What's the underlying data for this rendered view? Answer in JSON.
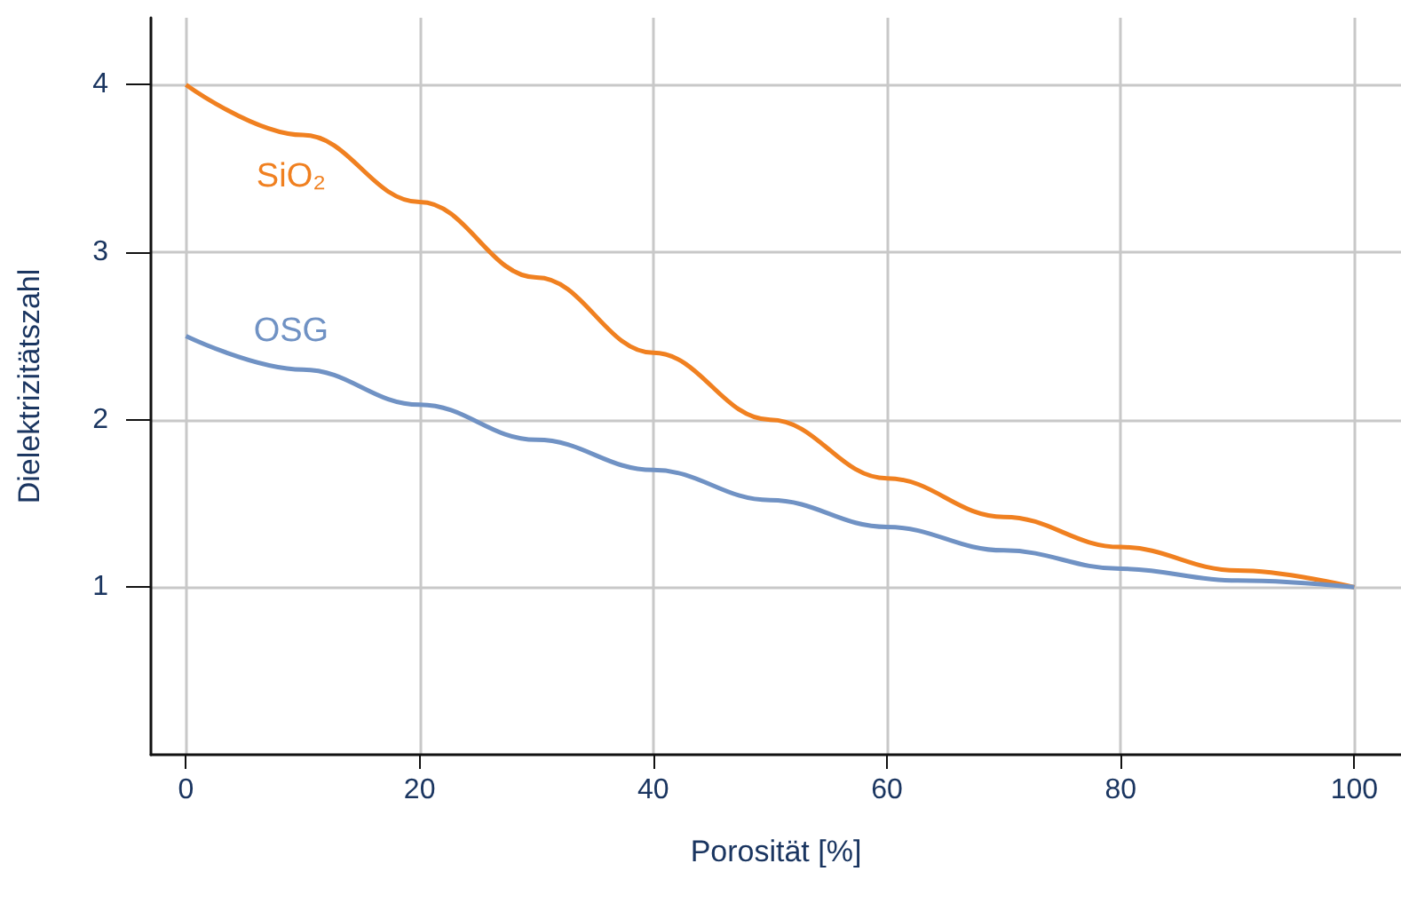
{
  "chart_data": {
    "type": "line",
    "xlabel": "Porosität [%]",
    "ylabel": "Dielektrizitätszahl",
    "x": [
      0,
      10,
      20,
      30,
      40,
      50,
      60,
      70,
      80,
      90,
      100
    ],
    "series": [
      {
        "name": "SiO₂",
        "color": "#f08020",
        "values": [
          4.0,
          3.7,
          3.3,
          2.85,
          2.4,
          2.0,
          1.65,
          1.42,
          1.24,
          1.1,
          1.0
        ]
      },
      {
        "name": "OSG",
        "color": "#7092c4",
        "values": [
          2.5,
          2.3,
          2.09,
          1.88,
          1.7,
          1.52,
          1.36,
          1.22,
          1.11,
          1.04,
          1.0
        ]
      }
    ],
    "xlim": [
      -3,
      104
    ],
    "xticks": [
      0,
      20,
      40,
      60,
      80,
      100
    ],
    "ylim": [
      0,
      4.4
    ],
    "yticks": [
      1,
      2,
      3,
      4
    ],
    "grid": true,
    "legend": false,
    "marker": "none",
    "line_style": "solid"
  }
}
